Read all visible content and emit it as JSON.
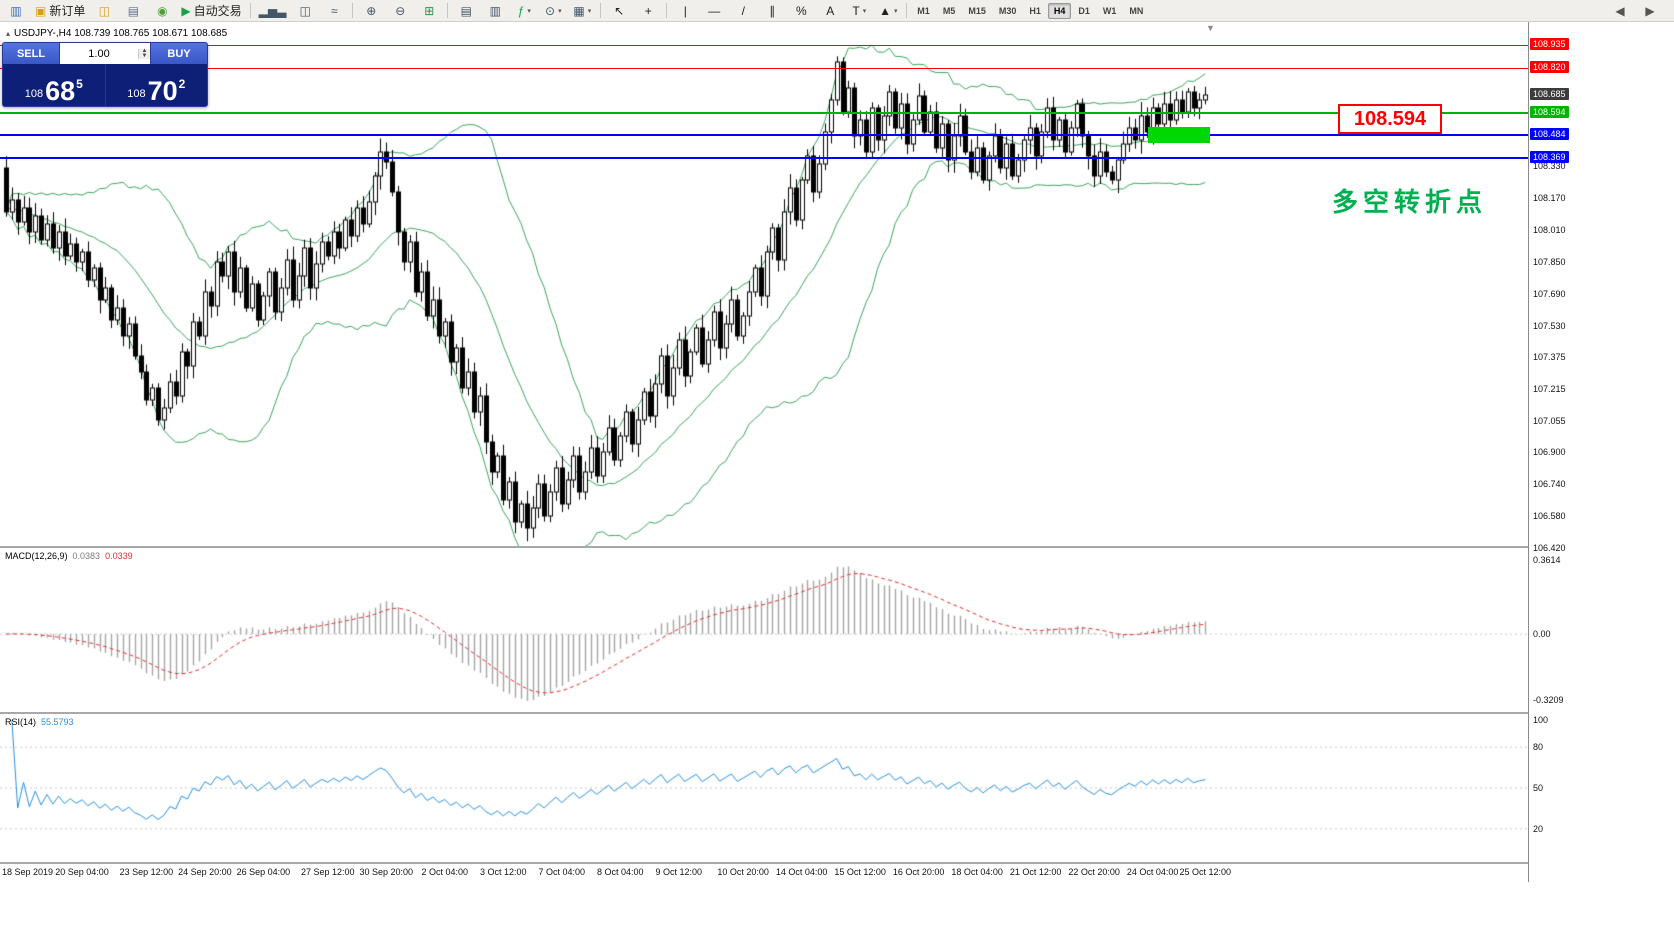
{
  "colors": {
    "bollinger": "#3aa35c",
    "rsi_line": "#2a8fdd",
    "macd_hist": "#a6a6a6",
    "macd_signal": "#e03030",
    "up_candle": "#ffffff",
    "down_candle": "#000000",
    "grid_dotted": "#c8c8c8",
    "level_red": "#ff0000",
    "level_green": "#00b300",
    "level_blue": "#0000ff",
    "current_tag_bg": "#3c3c3c"
  },
  "toolbar": {
    "items": [
      {
        "name": "app-icon",
        "glyph": "▥",
        "color": "#3d6db5"
      },
      {
        "name": "new-order-button",
        "glyph": "▣",
        "color": "#d4a017",
        "label": "新订单"
      },
      {
        "name": "chart-windows-icon",
        "glyph": "◫",
        "color": "#d4a017"
      },
      {
        "name": "profiles-icon",
        "glyph": "▤",
        "color": "#607090"
      },
      {
        "name": "alerts-icon",
        "glyph": "◉",
        "color": "#4f9e3a"
      },
      {
        "name": "autotrading-button",
        "glyph": "▶",
        "color": "#18a04a",
        "label": "自动交易"
      },
      {
        "type": "sep"
      },
      {
        "name": "bar-chart-icon",
        "glyph": "▂▅▃",
        "color": "#445566"
      },
      {
        "name": "candlestick-chart-icon",
        "glyph": "◫",
        "color": "#445566"
      },
      {
        "name": "line-chart-icon",
        "glyph": "≈",
        "color": "#445566"
      },
      {
        "type": "sep"
      },
      {
        "name": "zoom-in-icon",
        "glyph": "⊕",
        "color": "#445566"
      },
      {
        "name": "zoom-out-icon",
        "glyph": "⊖",
        "color": "#445566"
      },
      {
        "name": "tile-windows-icon",
        "glyph": "⊞",
        "color": "#2f8f4e"
      },
      {
        "type": "sep"
      },
      {
        "name": "charts-list-icon",
        "glyph": "▤",
        "color": "#445566"
      },
      {
        "name": "navigator-icon",
        "glyph": "▥",
        "color": "#445566"
      },
      {
        "name": "indicators-icon",
        "glyph": "ƒ",
        "color": "#18a04a",
        "caret": true
      },
      {
        "name": "periods-icon",
        "glyph": "⊙",
        "color": "#445566",
        "caret": true
      },
      {
        "name": "templates-icon",
        "glyph": "▦",
        "color": "#445566",
        "caret": true
      },
      {
        "type": "sep"
      },
      {
        "name": "cursor-icon",
        "glyph": "↖",
        "color": "#222222"
      },
      {
        "name": "crosshair-icon",
        "glyph": "+",
        "color": "#222222"
      },
      {
        "type": "sep"
      },
      {
        "name": "vertical-line-icon",
        "glyph": "|",
        "color": "#222222"
      },
      {
        "name": "horizontal-line-icon",
        "glyph": "—",
        "color": "#222222"
      },
      {
        "name": "trendline-icon",
        "glyph": "/",
        "color": "#222222"
      },
      {
        "name": "channel-icon",
        "glyph": "∥",
        "color": "#222222"
      },
      {
        "name": "fibonacci-icon",
        "glyph": "%",
        "color": "#222222"
      },
      {
        "name": "text-icon",
        "glyph": "A",
        "color": "#222222"
      },
      {
        "name": "arrows-icon",
        "glyph": "T",
        "color": "#222222",
        "caret": true
      },
      {
        "name": "shapes-icon",
        "glyph": "▲",
        "color": "#222222",
        "caret": true
      },
      {
        "type": "sep"
      },
      {
        "type": "tf",
        "label": "M1"
      },
      {
        "type": "tf",
        "label": "M5"
      },
      {
        "type": "tf",
        "label": "M15"
      },
      {
        "type": "tf",
        "label": "M30"
      },
      {
        "type": "tf",
        "label": "H1"
      },
      {
        "type": "tf",
        "label": "H4",
        "active": true
      },
      {
        "type": "tf",
        "label": "D1"
      },
      {
        "type": "tf",
        "label": "W1"
      },
      {
        "type": "tf",
        "label": "MN"
      }
    ],
    "right": [
      {
        "name": "toolbar-overflow-left-button",
        "glyph": "◀"
      },
      {
        "name": "toolbar-overflow-right-button",
        "glyph": "▶"
      }
    ]
  },
  "chart": {
    "symbol_header": "USDJPY-,H4  108.739 108.765 108.671 108.685",
    "one_click": {
      "sell_label": "SELL",
      "buy_label": "BUY",
      "volume": "1.00",
      "bid_prefix": "108",
      "bid_big": "68",
      "bid_sup": "5",
      "ask_prefix": "108",
      "ask_big": "70",
      "ask_sup": "2"
    }
  },
  "chart_data": {
    "type": "candlestick",
    "symbol": "USDJPY",
    "timeframe": "H4",
    "ohlc_header": {
      "open": 108.739,
      "high": 108.765,
      "low": 108.671,
      "close": 108.685
    },
    "first_open": 108.32,
    "closes": [
      108.1,
      108.16,
      108.05,
      108.12,
      108.0,
      108.08,
      107.96,
      108.04,
      107.92,
      108.0,
      107.88,
      107.94,
      107.85,
      107.9,
      107.76,
      107.82,
      107.66,
      107.72,
      107.56,
      107.62,
      107.48,
      107.54,
      107.38,
      107.3,
      107.16,
      107.22,
      107.06,
      107.12,
      107.25,
      107.18,
      107.4,
      107.33,
      107.55,
      107.48,
      107.7,
      107.63,
      107.85,
      107.78,
      107.9,
      107.7,
      107.82,
      107.62,
      107.74,
      107.56,
      107.68,
      107.8,
      107.6,
      107.72,
      107.86,
      107.66,
      107.78,
      107.92,
      107.72,
      107.84,
      107.95,
      107.88,
      108.0,
      107.92,
      108.06,
      107.98,
      108.12,
      108.04,
      108.15,
      108.28,
      108.4,
      108.35,
      108.2,
      108.0,
      107.85,
      107.95,
      107.7,
      107.8,
      107.58,
      107.66,
      107.48,
      107.55,
      107.35,
      107.42,
      107.22,
      107.3,
      107.1,
      107.18,
      106.95,
      106.8,
      106.88,
      106.66,
      106.75,
      106.55,
      106.64,
      106.52,
      106.62,
      106.74,
      106.58,
      106.7,
      106.82,
      106.64,
      106.76,
      106.88,
      106.7,
      106.8,
      106.92,
      106.78,
      106.9,
      107.02,
      106.86,
      106.98,
      107.1,
      106.94,
      107.06,
      107.2,
      107.08,
      107.24,
      107.38,
      107.18,
      107.32,
      107.46,
      107.28,
      107.4,
      107.52,
      107.34,
      107.46,
      107.6,
      107.42,
      107.54,
      107.66,
      107.48,
      107.58,
      107.7,
      107.82,
      107.68,
      107.9,
      108.02,
      107.86,
      108.1,
      108.22,
      108.06,
      108.26,
      108.38,
      108.2,
      108.34,
      108.5,
      108.66,
      108.85,
      108.6,
      108.72,
      108.48,
      108.56,
      108.4,
      108.62,
      108.46,
      108.58,
      108.7,
      108.52,
      108.64,
      108.44,
      108.56,
      108.68,
      108.5,
      108.6,
      108.42,
      108.54,
      108.36,
      108.48,
      108.58,
      108.4,
      108.3,
      108.42,
      108.26,
      108.38,
      108.48,
      108.32,
      108.44,
      108.28,
      108.36,
      108.46,
      108.52,
      108.38,
      108.5,
      108.62,
      108.46,
      108.56,
      108.4,
      108.52,
      108.64,
      108.48,
      108.38,
      108.28,
      108.4,
      108.3,
      108.26,
      108.36,
      108.44,
      108.52,
      108.46,
      108.58,
      108.5,
      108.62,
      108.54,
      108.64,
      108.56,
      108.66,
      108.6,
      108.7,
      108.62,
      108.66,
      108.685
    ],
    "bollinger": {
      "period": 20,
      "deviation": 2
    },
    "levels": [
      {
        "price": 108.935,
        "label": "108.935",
        "color": "#ff0000",
        "thickness": 1
      },
      {
        "price": 108.82,
        "label": "108.820",
        "color": "#ff0000",
        "thickness": 1
      },
      {
        "price": 108.594,
        "label": "108.594",
        "color": "#00b300",
        "thickness": 2
      },
      {
        "price": 108.484,
        "label": "108.484",
        "color": "#0000ff",
        "thickness": 2
      },
      {
        "price": 108.369,
        "label": "108.369",
        "color": "#0000ff",
        "thickness": 2
      }
    ],
    "current_price": {
      "label": "108.685",
      "price": 108.685
    },
    "annotations": {
      "price_label": "108.594",
      "note": "多空转折点"
    },
    "price_axis": {
      "ticks": [
        "108.330",
        "108.170",
        "108.010",
        "107.850",
        "107.690",
        "107.530",
        "107.375",
        "107.215",
        "107.055",
        "106.900",
        "106.740",
        "106.580",
        "106.420"
      ]
    },
    "time_axis": [
      {
        "i": 2,
        "label": "18 Sep 2019"
      },
      {
        "i": 13,
        "label": "20 Sep 04:00"
      },
      {
        "i": 24,
        "label": "23 Sep 12:00"
      },
      {
        "i": 34,
        "label": "24 Sep 20:00"
      },
      {
        "i": 44,
        "label": "26 Sep 04:00"
      },
      {
        "i": 55,
        "label": "27 Sep 12:00"
      },
      {
        "i": 65,
        "label": "30 Sep 20:00"
      },
      {
        "i": 75,
        "label": "2 Oct 04:00"
      },
      {
        "i": 85,
        "label": "3 Oct 12:00"
      },
      {
        "i": 95,
        "label": "7 Oct 04:00"
      },
      {
        "i": 105,
        "label": "8 Oct 04:00"
      },
      {
        "i": 115,
        "label": "9 Oct 12:00"
      },
      {
        "i": 126,
        "label": "10 Oct 20:00"
      },
      {
        "i": 136,
        "label": "14 Oct 04:00"
      },
      {
        "i": 146,
        "label": "15 Oct 12:00"
      },
      {
        "i": 156,
        "label": "16 Oct 20:00"
      },
      {
        "i": 166,
        "label": "18 Oct 04:00"
      },
      {
        "i": 176,
        "label": "21 Oct 12:00"
      },
      {
        "i": 186,
        "label": "22 Oct 20:00"
      },
      {
        "i": 196,
        "label": "24 Oct 04:00"
      },
      {
        "i": 205,
        "label": "25 Oct 12:00"
      }
    ],
    "macd": {
      "name": "MACD(12,26,9)",
      "v1": "0.0383",
      "v2": "0.0339",
      "fast": 12,
      "slow": 26,
      "signal": 9,
      "axis": [
        "0.3614",
        "0.00",
        "-0.3209"
      ]
    },
    "rsi": {
      "name": "RSI(14)",
      "value": "55.5793",
      "period": 14,
      "axis": [
        "100",
        "80",
        "50",
        "20"
      ],
      "levels": [
        80,
        50,
        20
      ]
    }
  }
}
